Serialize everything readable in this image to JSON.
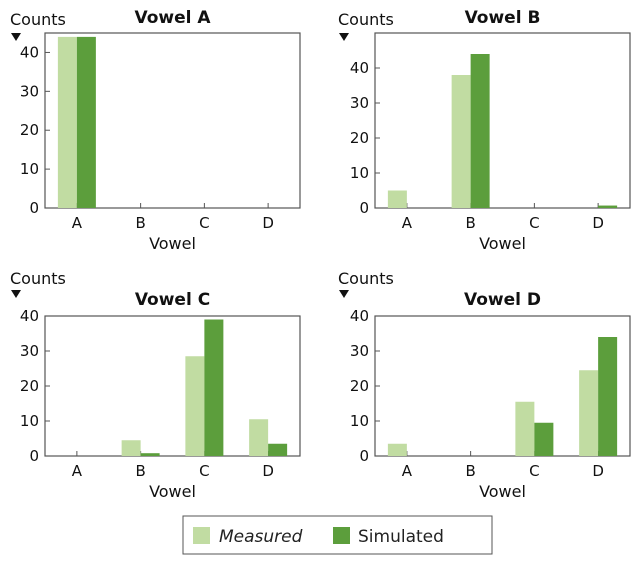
{
  "colors": {
    "measured": "#c1dca2",
    "simulated": "#5c9e3c",
    "axis": "#555555"
  },
  "chart_data": [
    {
      "type": "bar",
      "title": "Vowel A",
      "ylabel": "Counts",
      "xlabel": "Vowel",
      "categories": [
        "A",
        "B",
        "C",
        "D"
      ],
      "ylim": [
        0,
        45
      ],
      "yticks": [
        0,
        10,
        20,
        30,
        40
      ],
      "series": [
        {
          "name": "Measured",
          "values": [
            44,
            0,
            0,
            0
          ]
        },
        {
          "name": "Simulated",
          "values": [
            44,
            0,
            0,
            0
          ]
        }
      ]
    },
    {
      "type": "bar",
      "title": "Vowel B",
      "ylabel": "Counts",
      "xlabel": "Vowel",
      "categories": [
        "A",
        "B",
        "C",
        "D"
      ],
      "ylim": [
        0,
        50
      ],
      "yticks": [
        0,
        10,
        20,
        30,
        40
      ],
      "series": [
        {
          "name": "Measured",
          "values": [
            5,
            38,
            0,
            0
          ]
        },
        {
          "name": "Simulated",
          "values": [
            0,
            44,
            0,
            0.7
          ]
        }
      ]
    },
    {
      "type": "bar",
      "title": "Vowel C",
      "ylabel": "Counts",
      "xlabel": "Vowel",
      "categories": [
        "A",
        "B",
        "C",
        "D"
      ],
      "ylim": [
        0,
        40
      ],
      "yticks": [
        0,
        10,
        20,
        30,
        40
      ],
      "series": [
        {
          "name": "Measured",
          "values": [
            0,
            4.5,
            28.5,
            10.5
          ]
        },
        {
          "name": "Simulated",
          "values": [
            0,
            0.8,
            39,
            3.5
          ]
        }
      ]
    },
    {
      "type": "bar",
      "title": "Vowel D",
      "ylabel": "Counts",
      "xlabel": "Vowel",
      "categories": [
        "A",
        "B",
        "C",
        "D"
      ],
      "ylim": [
        0,
        40
      ],
      "yticks": [
        0,
        10,
        20,
        30,
        40
      ],
      "series": [
        {
          "name": "Measured",
          "values": [
            3.5,
            0,
            15.5,
            24.5
          ]
        },
        {
          "name": "Simulated",
          "values": [
            0,
            0,
            9.5,
            34
          ]
        }
      ]
    }
  ],
  "legend": {
    "items": [
      "Measured",
      "Simulated"
    ]
  }
}
